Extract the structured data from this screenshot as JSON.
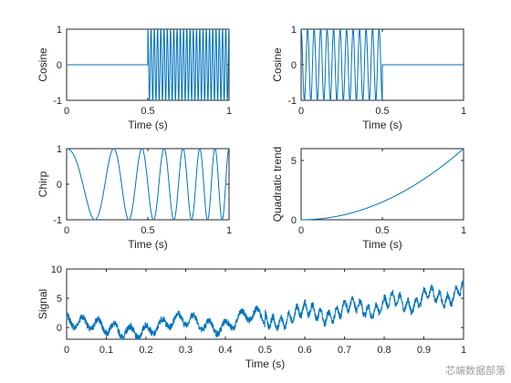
{
  "chart_data": [
    {
      "id": "p1",
      "type": "line",
      "xlabel": "Time (s)",
      "ylabel": "Cosine",
      "xlim": [
        0,
        1
      ],
      "ylim": [
        -1,
        1
      ],
      "xticks": [
        0,
        0.5,
        1
      ],
      "yticks": [
        -1,
        0,
        1
      ],
      "signal": {
        "kind": "cosine_burst",
        "on": [
          0.5,
          1.0
        ],
        "amplitude": 1,
        "frequency_hz": 50
      },
      "color": "#0072BD"
    },
    {
      "id": "p2",
      "type": "line",
      "xlabel": "Time (s)",
      "ylabel": "Cosine",
      "xlim": [
        0,
        1
      ],
      "ylim": [
        -1,
        1
      ],
      "xticks": [
        0,
        0.5,
        1
      ],
      "yticks": [
        -1,
        0,
        1
      ],
      "signal": {
        "kind": "cosine_burst",
        "on": [
          0.0,
          0.5
        ],
        "amplitude": 1,
        "frequency_hz": 25
      },
      "color": "#0072BD"
    },
    {
      "id": "p3",
      "type": "line",
      "xlabel": "Time (s)",
      "ylabel": "Chirp",
      "xlim": [
        0,
        1
      ],
      "ylim": [
        -1,
        1
      ],
      "xticks": [
        0,
        0.5,
        1
      ],
      "yticks": [
        -1,
        0,
        1
      ],
      "signal": {
        "kind": "chirp",
        "f0_hz": 2,
        "f1_hz": 12
      },
      "color": "#0072BD"
    },
    {
      "id": "p4",
      "type": "line",
      "xlabel": "Time (s)",
      "ylabel": "Quadratic trend",
      "xlim": [
        0,
        1
      ],
      "ylim": [
        0,
        6
      ],
      "xticks": [
        0,
        0.5,
        1
      ],
      "yticks": [
        0,
        5
      ],
      "signal": {
        "kind": "quadratic",
        "formula": "y = 6 t^2"
      },
      "color": "#0072BD"
    },
    {
      "id": "p5",
      "type": "line",
      "xlabel": "Time (s)",
      "ylabel": "Signal",
      "xlim": [
        0,
        1
      ],
      "ylim": [
        -2,
        10
      ],
      "xticks": [
        0,
        0.1,
        0.2,
        0.3,
        0.4,
        0.5,
        0.6,
        0.7,
        0.8,
        0.9,
        1
      ],
      "yticks": [
        0,
        5,
        10
      ],
      "signal": {
        "kind": "sum",
        "components": [
          "cosine_burst (25 Hz, 0-0.5 s)",
          "cosine_burst (50 Hz, 0.5-1 s)",
          "chirp",
          "quadratic trend",
          "noise"
        ]
      },
      "color": "#0072BD"
    }
  ],
  "watermark": "芯端数据部落"
}
